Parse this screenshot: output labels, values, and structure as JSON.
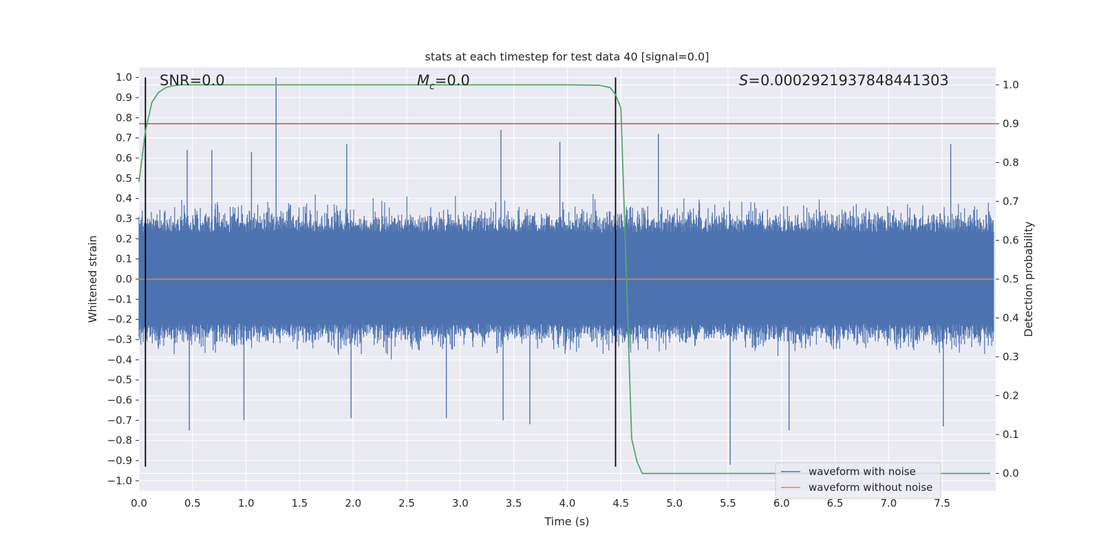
{
  "chart_data": {
    "type": "line",
    "title": "stats at each timestep for test data 40 [signal=0.0]",
    "xlabel": "Time (s)",
    "ylabel": "Whitened strain",
    "y2label": "Detection probability",
    "xlim": [
      0.0,
      8.0
    ],
    "ylim": [
      -1.05,
      1.05
    ],
    "y2lim": [
      -0.045,
      1.045
    ],
    "grid": true,
    "xticks": [
      "0.0",
      "0.5",
      "1.0",
      "1.5",
      "2.0",
      "2.5",
      "3.0",
      "3.5",
      "4.0",
      "4.5",
      "5.0",
      "5.5",
      "6.0",
      "6.5",
      "7.0",
      "7.5"
    ],
    "yticks": [
      "1.0",
      "0.9",
      "0.8",
      "0.7",
      "0.6",
      "0.5",
      "0.4",
      "0.3",
      "0.2",
      "0.1",
      "0.0",
      "−0.1",
      "−0.2",
      "−0.3",
      "−0.4",
      "−0.5",
      "−0.6",
      "−0.7",
      "−0.8",
      "−0.9",
      "−1.0"
    ],
    "y2ticks": [
      "1.0",
      "0.9",
      "0.8",
      "0.7",
      "0.6",
      "0.5",
      "0.4",
      "0.3",
      "0.2",
      "0.1",
      "0.0"
    ],
    "annotations": {
      "snr": "SNR=0.0",
      "mc_symbol": "M",
      "mc_sub": "c",
      "mc_value": "=0.0",
      "s_symbol": "S",
      "s_value": "=0.0002921937848441303"
    },
    "legend": {
      "position": "lower-right",
      "entries": [
        {
          "label": "waveform with noise",
          "color": "#4c72b0"
        },
        {
          "label": "waveform without noise",
          "color": "#dd8452"
        }
      ]
    },
    "series": [
      {
        "name": "waveform with noise",
        "color": "#4c72b0",
        "axis": "left",
        "noise_envelope": {
          "typical_max": 0.42,
          "typical_min": -0.4,
          "spikes": [
            {
              "x": 0.45,
              "y": 0.64
            },
            {
              "x": 0.47,
              "y": -0.75
            },
            {
              "x": 0.68,
              "y": 0.64
            },
            {
              "x": 0.98,
              "y": -0.7
            },
            {
              "x": 1.05,
              "y": 0.63
            },
            {
              "x": 1.28,
              "y": 1.0
            },
            {
              "x": 1.94,
              "y": 0.67
            },
            {
              "x": 1.98,
              "y": -0.69
            },
            {
              "x": 2.87,
              "y": -0.69
            },
            {
              "x": 3.38,
              "y": 0.74
            },
            {
              "x": 3.4,
              "y": -0.7
            },
            {
              "x": 3.65,
              "y": -0.72
            },
            {
              "x": 3.93,
              "y": 0.68
            },
            {
              "x": 4.85,
              "y": 0.72
            },
            {
              "x": 5.52,
              "y": -0.92
            },
            {
              "x": 6.07,
              "y": -0.75
            },
            {
              "x": 7.51,
              "y": -0.73
            },
            {
              "x": 7.58,
              "y": 0.67
            }
          ]
        }
      },
      {
        "name": "waveform without noise",
        "color": "#dd8452",
        "axis": "left",
        "x": [
          0.0,
          8.0
        ],
        "y": [
          0.0,
          0.0
        ]
      },
      {
        "name": "detection probability",
        "color": "#55a868",
        "axis": "right",
        "x": [
          0.0,
          0.06,
          0.12,
          0.18,
          0.25,
          0.32,
          0.4,
          0.55,
          1.0,
          2.0,
          3.0,
          4.0,
          4.3,
          4.4,
          4.45,
          4.5,
          4.55,
          4.6,
          4.65,
          4.7,
          4.8,
          5.5,
          6.5,
          7.95
        ],
        "y": [
          0.75,
          0.88,
          0.955,
          0.98,
          0.993,
          0.998,
          1.0,
          1.0,
          1.0,
          1.0,
          1.0,
          1.0,
          0.999,
          0.993,
          0.975,
          0.94,
          0.52,
          0.09,
          0.03,
          0.0,
          0.0,
          0.0,
          0.0,
          0.0
        ]
      }
    ],
    "threshold": {
      "value": 0.9,
      "axis": "right",
      "color": "#c44e52"
    },
    "vlines": [
      {
        "x": 0.06,
        "y_from": -0.93,
        "y_to": 1.0
      },
      {
        "x": 4.45,
        "y_from": -0.93,
        "y_to": 1.0
      }
    ]
  }
}
